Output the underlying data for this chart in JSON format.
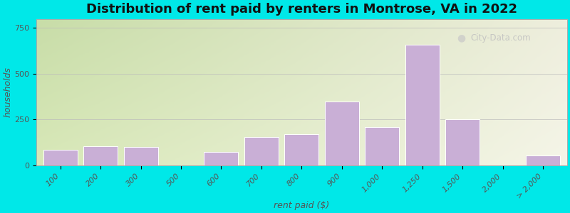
{
  "title": "Distribution of rent paid by renters in Montrose, VA in 2022",
  "xlabel": "rent paid ($)",
  "ylabel": "households",
  "bar_color": "#c9afd6",
  "bar_edge_color": "#ffffff",
  "categories": [
    "100",
    "200",
    "300",
    "500",
    "600",
    "700",
    "800",
    "900",
    "1,000",
    "1,250",
    "1,500",
    "2,000",
    "> 2,000"
  ],
  "values": [
    85,
    105,
    100,
    0,
    75,
    155,
    170,
    350,
    210,
    660,
    250,
    0,
    55
  ],
  "yticks": [
    0,
    250,
    500,
    750
  ],
  "ylim": [
    0,
    800
  ],
  "bg_color_tl": "#c8dda8",
  "bg_color_tr": "#eeeedd",
  "bg_color_bl": "#d8e8b8",
  "bg_color_br": "#f0f0e0",
  "outer_bg": "#00e8e8",
  "watermark_text": "City-Data.com",
  "title_fontsize": 13,
  "axis_label_fontsize": 9,
  "tick_fontsize": 8,
  "grid_color": "#bbbbbb",
  "spine_color": "#aaaaaa",
  "text_color": "#555555",
  "title_color": "#111111"
}
